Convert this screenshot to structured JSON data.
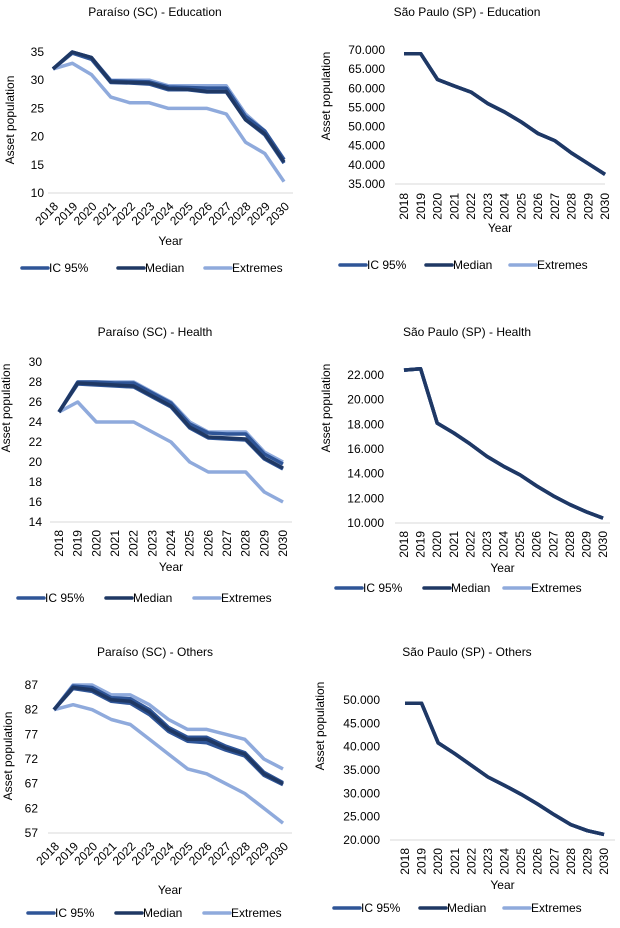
{
  "colors": {
    "ic95": "#2f5597",
    "median": "#1f3864",
    "extremes": "#8faadc",
    "axis": "#d9d9d9"
  },
  "legend": [
    "IC 95%",
    "Median",
    "Extremes"
  ],
  "chart_data": [
    {
      "type": "line",
      "title": "Paraíso (SC) - Education",
      "xlabel": "Year",
      "ylabel": "Asset population",
      "categories": [
        "2018",
        "2019",
        "2020",
        "2021",
        "2022",
        "2023",
        "2024",
        "2025",
        "2026",
        "2027",
        "2028",
        "2029",
        "2030"
      ],
      "ylim": [
        10,
        35
      ],
      "yticks": [
        "35",
        "30",
        "25",
        "20",
        "15",
        "10"
      ],
      "ytick_values": [
        35,
        30,
        25,
        20,
        15,
        10
      ],
      "x_label_rotation": "diagonal",
      "grid": false,
      "legend_placement": "bottom",
      "series": [
        {
          "name": "Extremes",
          "bound": "upper",
          "values": [
            32,
            35,
            34,
            30,
            30,
            30,
            29,
            29,
            29,
            29,
            24,
            21,
            16
          ]
        },
        {
          "name": "Extremes",
          "bound": "lower",
          "values": [
            32,
            33,
            31,
            27,
            26,
            26,
            25,
            25,
            25,
            24,
            19,
            17,
            12
          ]
        },
        {
          "name": "IC 95%",
          "bound": "upper",
          "values": [
            32,
            35,
            34,
            29.9,
            29.8,
            29.7,
            28.8,
            28.7,
            28.6,
            28.6,
            23.6,
            21,
            15.9
          ]
        },
        {
          "name": "IC 95%",
          "bound": "lower",
          "values": [
            32,
            34.8,
            33.7,
            29.6,
            29.5,
            29.3,
            28.3,
            28.3,
            27.9,
            27.9,
            23,
            20.3,
            15.3
          ]
        },
        {
          "name": "Median",
          "values": [
            32,
            35,
            34,
            29.7,
            29.6,
            29.5,
            28.5,
            28.4,
            28,
            28,
            23,
            20.5,
            15.5
          ]
        }
      ]
    },
    {
      "type": "line",
      "title": "São Paulo (SP) - Education",
      "xlabel": "Year",
      "ylabel": "Asset population",
      "categories": [
        "2018",
        "2019",
        "2020",
        "2021",
        "2022",
        "2023",
        "2024",
        "2025",
        "2026",
        "2027",
        "2028",
        "2029",
        "2030"
      ],
      "ylim": [
        35000,
        70000
      ],
      "yticks": [
        "70.000",
        "65.000",
        "60.000",
        "55.000",
        "50.000",
        "45.000",
        "40.000",
        "35.000"
      ],
      "ytick_values": [
        70000,
        65000,
        60000,
        55000,
        50000,
        45000,
        40000,
        35000
      ],
      "x_label_rotation": "vertical",
      "grid": false,
      "legend_placement": "bottom",
      "series": [
        {
          "name": "Extremes",
          "bound": "upper",
          "values": [
            69000,
            69000,
            62300,
            60600,
            59000,
            56000,
            53800,
            51200,
            48200,
            46300,
            43100,
            40300,
            37500
          ]
        },
        {
          "name": "Extremes",
          "bound": "lower",
          "values": [
            69000,
            69000,
            62300,
            60600,
            59000,
            56000,
            53800,
            51200,
            48200,
            46300,
            43100,
            40300,
            37500
          ]
        },
        {
          "name": "IC 95%",
          "bound": "upper",
          "values": [
            69000,
            69000,
            62300,
            60600,
            59000,
            56000,
            53800,
            51200,
            48200,
            46300,
            43100,
            40300,
            37500
          ]
        },
        {
          "name": "IC 95%",
          "bound": "lower",
          "values": [
            69000,
            69000,
            62300,
            60600,
            59000,
            56000,
            53800,
            51200,
            48200,
            46300,
            43100,
            40300,
            37500
          ]
        },
        {
          "name": "Median",
          "values": [
            69000,
            69000,
            62300,
            60600,
            59000,
            56000,
            53800,
            51200,
            48200,
            46300,
            43100,
            40300,
            37500
          ]
        }
      ]
    },
    {
      "type": "line",
      "title": "Paraíso (SC) - Health",
      "xlabel": "Year",
      "ylabel": "Asset population",
      "categories": [
        "2018",
        "2019",
        "2020",
        "2021",
        "2022",
        "2023",
        "2024",
        "2025",
        "2026",
        "2027",
        "2028",
        "2029",
        "2030"
      ],
      "ylim": [
        14,
        30
      ],
      "yticks": [
        "30",
        "28",
        "26",
        "24",
        "22",
        "20",
        "18",
        "16",
        "14"
      ],
      "ytick_values": [
        30,
        28,
        26,
        24,
        22,
        20,
        18,
        16,
        14
      ],
      "x_label_rotation": "vertical",
      "grid": false,
      "legend_placement": "bottom",
      "series": [
        {
          "name": "Extremes",
          "bound": "upper",
          "values": [
            25,
            28,
            28,
            28,
            28,
            27,
            26,
            24,
            23,
            23,
            23,
            21,
            20
          ]
        },
        {
          "name": "Extremes",
          "bound": "lower",
          "values": [
            25,
            26,
            24,
            24,
            24,
            23,
            22,
            20,
            19,
            19,
            19,
            17,
            16
          ]
        },
        {
          "name": "IC 95%",
          "bound": "upper",
          "values": [
            25,
            28,
            28,
            27.9,
            27.9,
            26.9,
            25.9,
            23.8,
            22.9,
            22.8,
            22.8,
            20.8,
            19.8
          ]
        },
        {
          "name": "IC 95%",
          "bound": "lower",
          "values": [
            25,
            27.8,
            27.7,
            27.6,
            27.5,
            26.5,
            25.5,
            23.4,
            22.4,
            22.3,
            22.2,
            20.3,
            19.3
          ]
        },
        {
          "name": "Median",
          "values": [
            25,
            27.9,
            27.8,
            27.7,
            27.6,
            26.6,
            25.6,
            23.5,
            22.5,
            22.4,
            22.3,
            20.4,
            19.4
          ]
        }
      ]
    },
    {
      "type": "line",
      "title": "São Paulo (SP) - Health",
      "xlabel": "Year",
      "ylabel": "Asset population",
      "categories": [
        "2018",
        "2019",
        "2020",
        "2021",
        "2022",
        "2023",
        "2024",
        "2025",
        "2026",
        "2027",
        "2028",
        "2029",
        "2030"
      ],
      "ylim": [
        10000,
        22000
      ],
      "yticks": [
        "22.000",
        "20.000",
        "18.000",
        "16.000",
        "14.000",
        "12.000",
        "10.000"
      ],
      "ytick_values": [
        22000,
        20000,
        18000,
        16000,
        14000,
        12000,
        10000
      ],
      "x_label_rotation": "vertical",
      "grid": false,
      "legend_placement": "bottom",
      "series": [
        {
          "name": "Extremes",
          "bound": "upper",
          "values": [
            22400,
            22500,
            18100,
            17300,
            16400,
            15400,
            14600,
            13900,
            13000,
            12200,
            11500,
            10900,
            10400
          ]
        },
        {
          "name": "Extremes",
          "bound": "lower",
          "values": [
            22400,
            22500,
            18100,
            17300,
            16400,
            15400,
            14600,
            13900,
            13000,
            12200,
            11500,
            10900,
            10400
          ]
        },
        {
          "name": "IC 95%",
          "bound": "upper",
          "values": [
            22400,
            22500,
            18100,
            17300,
            16400,
            15400,
            14600,
            13900,
            13000,
            12200,
            11500,
            10900,
            10400
          ]
        },
        {
          "name": "IC 95%",
          "bound": "lower",
          "values": [
            22400,
            22500,
            18100,
            17300,
            16400,
            15400,
            14600,
            13900,
            13000,
            12200,
            11500,
            10900,
            10400
          ]
        },
        {
          "name": "Median",
          "values": [
            22400,
            22500,
            18100,
            17300,
            16400,
            15400,
            14600,
            13900,
            13000,
            12200,
            11500,
            10900,
            10400
          ]
        }
      ]
    },
    {
      "type": "line",
      "title": "Paraíso (SC) - Others",
      "xlabel": "Year",
      "ylabel": "Asset population",
      "categories": [
        "2018",
        "2019",
        "2020",
        "2021",
        "2022",
        "2023",
        "2024",
        "2025",
        "2026",
        "2027",
        "2028",
        "2029",
        "2030"
      ],
      "ylim": [
        57,
        87
      ],
      "yticks": [
        "87",
        "82",
        "77",
        "72",
        "67",
        "62",
        "57"
      ],
      "ytick_values": [
        87,
        82,
        77,
        72,
        67,
        62,
        57
      ],
      "x_label_rotation": "diagonal",
      "grid": false,
      "legend_placement": "bottom",
      "series": [
        {
          "name": "Extremes",
          "bound": "upper",
          "values": [
            82,
            87,
            87,
            85,
            85,
            83,
            80,
            78,
            78,
            77,
            76,
            72,
            70
          ]
        },
        {
          "name": "Extremes",
          "bound": "lower",
          "values": [
            82,
            83,
            82,
            80,
            79,
            76,
            73,
            70,
            69,
            67,
            65,
            62,
            59
          ]
        },
        {
          "name": "IC 95%",
          "bound": "upper",
          "values": [
            82,
            86.8,
            86.5,
            84.4,
            84.2,
            82,
            78.4,
            76.4,
            76.4,
            74.6,
            73.3,
            69.3,
            67.2
          ]
        },
        {
          "name": "IC 95%",
          "bound": "lower",
          "values": [
            82,
            86.3,
            85.7,
            83.7,
            83.3,
            81,
            77.6,
            75.6,
            75.3,
            73.8,
            72.6,
            68.7,
            66.8
          ]
        },
        {
          "name": "Median",
          "values": [
            82,
            86.5,
            86,
            84,
            83.7,
            81.5,
            78,
            76,
            76,
            74.2,
            73,
            69,
            67
          ]
        }
      ]
    },
    {
      "type": "line",
      "title": "São Paulo (SP) - Others",
      "xlabel": "Year",
      "ylabel": "Asset population",
      "categories": [
        "2018",
        "2019",
        "2020",
        "2021",
        "2022",
        "2023",
        "2024",
        "2025",
        "2026",
        "2027",
        "2028",
        "2029",
        "2030"
      ],
      "ylim": [
        20000,
        50000
      ],
      "yticks": [
        "50.000",
        "45.000",
        "40.000",
        "35.000",
        "30.000",
        "25.000",
        "20.000"
      ],
      "ytick_values": [
        50000,
        45000,
        40000,
        35000,
        30000,
        25000,
        20000
      ],
      "x_label_rotation": "vertical",
      "grid": false,
      "legend_placement": "bottom",
      "series": [
        {
          "name": "Extremes",
          "bound": "upper",
          "values": [
            49300,
            49300,
            40800,
            38500,
            36000,
            33500,
            31700,
            29800,
            27700,
            25400,
            23300,
            22000,
            21200
          ]
        },
        {
          "name": "Extremes",
          "bound": "lower",
          "values": [
            49300,
            49300,
            40800,
            38500,
            36000,
            33500,
            31700,
            29800,
            27700,
            25400,
            23300,
            22000,
            21200
          ]
        },
        {
          "name": "IC 95%",
          "bound": "upper",
          "values": [
            49300,
            49300,
            40800,
            38500,
            36000,
            33500,
            31700,
            29800,
            27700,
            25400,
            23300,
            22000,
            21200
          ]
        },
        {
          "name": "IC 95%",
          "bound": "lower",
          "values": [
            49300,
            49300,
            40800,
            38500,
            36000,
            33500,
            31700,
            29800,
            27700,
            25400,
            23300,
            22000,
            21200
          ]
        },
        {
          "name": "Median",
          "values": [
            49300,
            49300,
            40800,
            38500,
            36000,
            33500,
            31700,
            29800,
            27700,
            25400,
            23300,
            22000,
            21200
          ]
        }
      ]
    }
  ]
}
